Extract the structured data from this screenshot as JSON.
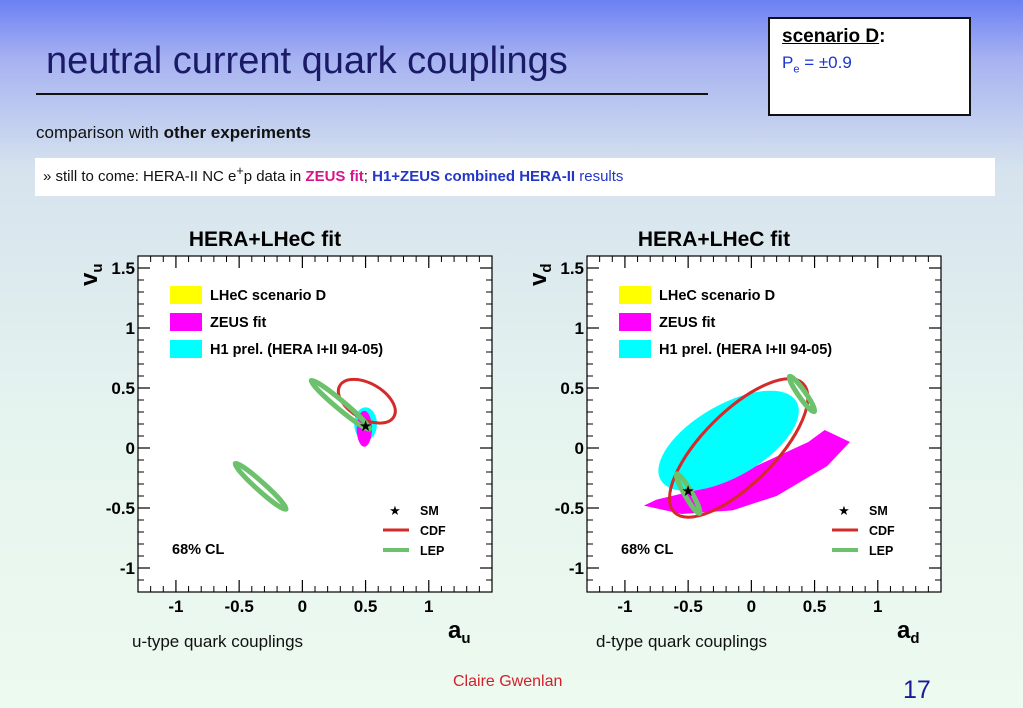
{
  "slide": {
    "title": "neutral current quark couplings",
    "scenario_title": "scenario D",
    "scenario_colon": ":",
    "pe_symbol": "P",
    "pe_sub": "e",
    "pe_value": " = ±0.9",
    "comparison_prefix": "comparison with ",
    "comparison_bold": "other experiments",
    "note_prefix": "» still to come: HERA-II NC e",
    "note_sup": "+",
    "note_mid": "p data in ",
    "note_zeus": "ZEUS fit",
    "note_sep": "; ",
    "note_h1zeus": "H1+ZEUS combined HERA-II",
    "note_results": " results",
    "caption_left": "u-type quark couplings",
    "caption_right": "d-type quark couplings",
    "author": "Claire  Gwenlan",
    "page_number": "17"
  },
  "colors": {
    "lhec": "#ffff00",
    "zeus": "#ff00ff",
    "h1": "#00ffff",
    "cdf": "#d42a2a",
    "lep": "#6cc26c",
    "sm": "#000000"
  },
  "chart_data": [
    {
      "type": "scatter",
      "title": "HERA+LHeC fit",
      "xlabel": "a",
      "xlabel_sub": "u",
      "ylabel": "v",
      "ylabel_sub": "u",
      "xlim": [
        -1.3,
        1.5
      ],
      "ylim": [
        -1.2,
        1.6
      ],
      "xticks": [
        -1,
        -0.5,
        0,
        0.5,
        1
      ],
      "yticks": [
        -1,
        -0.5,
        0,
        0.5,
        1,
        1.5
      ],
      "x_tick_labels": [
        "-1",
        "-0.5",
        "0",
        "0.5",
        "1"
      ],
      "y_tick_labels": [
        "-1",
        "-0.5",
        "0",
        "0.5",
        "1",
        "1.5"
      ],
      "cl_label": "68% CL",
      "legend_fill": [
        "LHeC scenario D",
        "ZEUS fit",
        "H1 prel. (HERA I+II 94-05)"
      ],
      "legend_line": [
        "SM",
        "CDF",
        "LEP"
      ],
      "sm_point": {
        "a": 0.5,
        "v": 0.19
      },
      "regions": [
        {
          "name": "H1 prel. (HERA I+II 94-05)",
          "center": [
            0.5,
            0.2
          ],
          "semi_axes": [
            0.09,
            0.14
          ],
          "angle": 0
        },
        {
          "name": "ZEUS fit",
          "center": [
            0.49,
            0.16
          ],
          "semi_axes": [
            0.06,
            0.15
          ],
          "angle": 0
        },
        {
          "name": "LHeC scenario D",
          "center": [
            0.5,
            0.19
          ],
          "semi_axes": [
            0.02,
            0.03
          ],
          "angle": 0
        }
      ],
      "contours": [
        {
          "name": "CDF",
          "center": [
            0.51,
            0.39
          ],
          "semi_axes": [
            0.14,
            0.26
          ],
          "angle": 60
        },
        {
          "name": "LEP",
          "center": [
            0.3,
            0.36
          ],
          "semi_axes": [
            0.3,
            0.035
          ],
          "angle": -40
        },
        {
          "name": "LEP",
          "center": [
            -0.33,
            -0.32
          ],
          "semi_axes": [
            0.27,
            0.035
          ],
          "angle": -42
        }
      ]
    },
    {
      "type": "scatter",
      "title": "HERA+LHeC fit",
      "xlabel": "a",
      "xlabel_sub": "d",
      "ylabel": "v",
      "ylabel_sub": "d",
      "xlim": [
        -1.3,
        1.5
      ],
      "ylim": [
        -1.2,
        1.6
      ],
      "xticks": [
        -1,
        -0.5,
        0,
        0.5,
        1
      ],
      "yticks": [
        -1,
        -0.5,
        0,
        0.5,
        1,
        1.5
      ],
      "x_tick_labels": [
        "-1",
        "-0.5",
        "0",
        "0.5",
        "1"
      ],
      "y_tick_labels": [
        "-1",
        "-0.5",
        "0",
        "0.5",
        "1",
        "1.5"
      ],
      "cl_label": "68% CL",
      "legend_fill": [
        "LHeC scenario D",
        "ZEUS fit",
        "H1 prel. (HERA I+II 94-05)"
      ],
      "legend_line": [
        "SM",
        "CDF",
        "LEP"
      ],
      "sm_point": {
        "a": -0.5,
        "v": -0.35
      },
      "regions": [
        {
          "name": "ZEUS fit",
          "polygon": [
            [
              -0.75,
              -0.43
            ],
            [
              -0.35,
              -0.33
            ],
            [
              0.1,
              -0.12
            ],
            [
              0.45,
              0.05
            ],
            [
              0.58,
              0.15
            ],
            [
              0.78,
              0.05
            ],
            [
              0.6,
              -0.15
            ],
            [
              0.2,
              -0.4
            ],
            [
              -0.15,
              -0.52
            ],
            [
              -0.55,
              -0.55
            ],
            [
              -0.85,
              -0.48
            ]
          ]
        },
        {
          "name": "H1 prel. (HERA I+II 94-05)",
          "center": [
            -0.18,
            0.06
          ],
          "semi_axes": [
            0.62,
            0.3
          ],
          "angle": 30
        },
        {
          "name": "LHeC scenario D",
          "center": [
            -0.5,
            -0.35
          ],
          "semi_axes": [
            0.02,
            0.02
          ],
          "angle": 0
        }
      ],
      "contours": [
        {
          "name": "CDF",
          "center": [
            -0.1,
            0.0
          ],
          "semi_axes": [
            0.72,
            0.3
          ],
          "angle": 45
        },
        {
          "name": "LEP",
          "center": [
            -0.5,
            -0.38
          ],
          "semi_axes": [
            0.18,
            0.03
          ],
          "angle": -60
        },
        {
          "name": "LEP",
          "center": [
            0.4,
            0.45
          ],
          "semi_axes": [
            0.17,
            0.03
          ],
          "angle": -55
        }
      ]
    }
  ]
}
